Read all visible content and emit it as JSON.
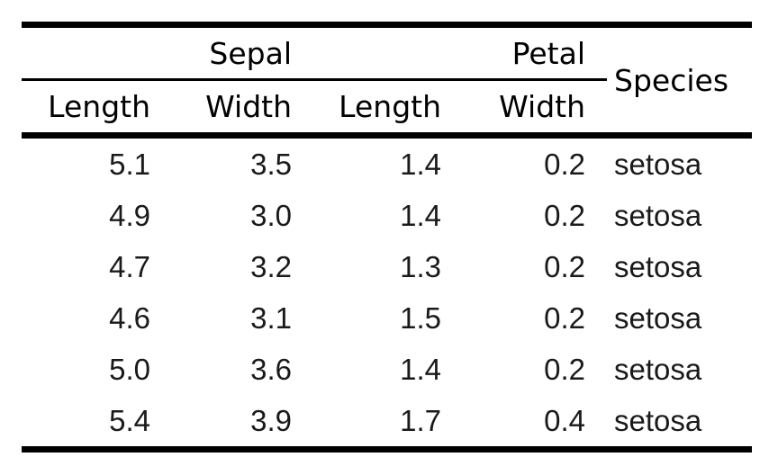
{
  "chart_data": {
    "type": "table",
    "spanner_headers": [
      "Sepal",
      "Petal"
    ],
    "sub_headers": [
      "Length",
      "Width",
      "Length",
      "Width"
    ],
    "species_header": "Species",
    "rows": [
      [
        "5.1",
        "3.5",
        "1.4",
        "0.2",
        "setosa"
      ],
      [
        "4.9",
        "3.0",
        "1.4",
        "0.2",
        "setosa"
      ],
      [
        "4.7",
        "3.2",
        "1.3",
        "0.2",
        "setosa"
      ],
      [
        "4.6",
        "3.1",
        "1.5",
        "0.2",
        "setosa"
      ],
      [
        "5.0",
        "3.6",
        "1.4",
        "0.2",
        "setosa"
      ],
      [
        "5.4",
        "3.9",
        "1.7",
        "0.4",
        "setosa"
      ]
    ],
    "layout_hints": {
      "numeric_alignment": "right",
      "species_alignment": "left",
      "rule_style": "booktabs"
    }
  },
  "colors": {
    "background": "#ffffff",
    "rule": "#000000",
    "header_text": "#000000",
    "body_text": "#1a1a1a"
  }
}
